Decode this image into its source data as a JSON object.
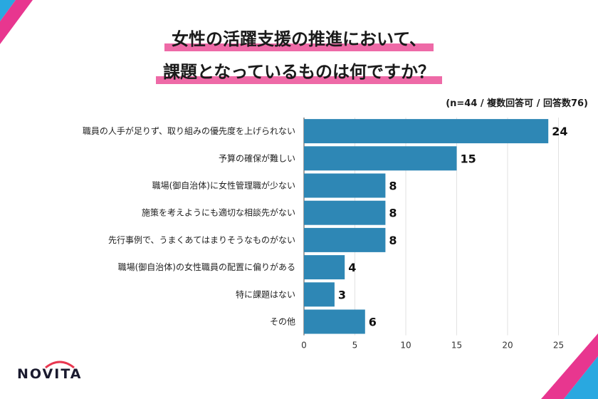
{
  "title": {
    "line1": "女性の活躍支援の推進において、",
    "line2": "課題となっているものは何ですか？"
  },
  "note": "(n=44 / 複数回答可 / 回答数76)",
  "logo": {
    "text": "NOVITA"
  },
  "colors": {
    "bar": "#2e87b5",
    "accent_pink": "#e8368f",
    "accent_blue": "#29a8e0",
    "title_highlight": "#ee6aa7"
  },
  "chart_data": {
    "type": "bar",
    "orientation": "horizontal",
    "categories": [
      "職員の人手が足りず、取り組みの優先度を上げられない",
      "予算の確保が難しい",
      "職場(御自治体)に女性管理職が少ない",
      "施策を考えようにも適切な相談先がない",
      "先行事例で、うまくあてはまりそうなものがない",
      "職場(御自治体)の女性職員の配置に偏りがある",
      "特に課題はない",
      "その他"
    ],
    "values": [
      24,
      15,
      8,
      8,
      8,
      4,
      3,
      6
    ],
    "xlim": [
      0,
      25
    ],
    "xticks": [
      0,
      5,
      10,
      15,
      20,
      25
    ],
    "grid": true
  }
}
